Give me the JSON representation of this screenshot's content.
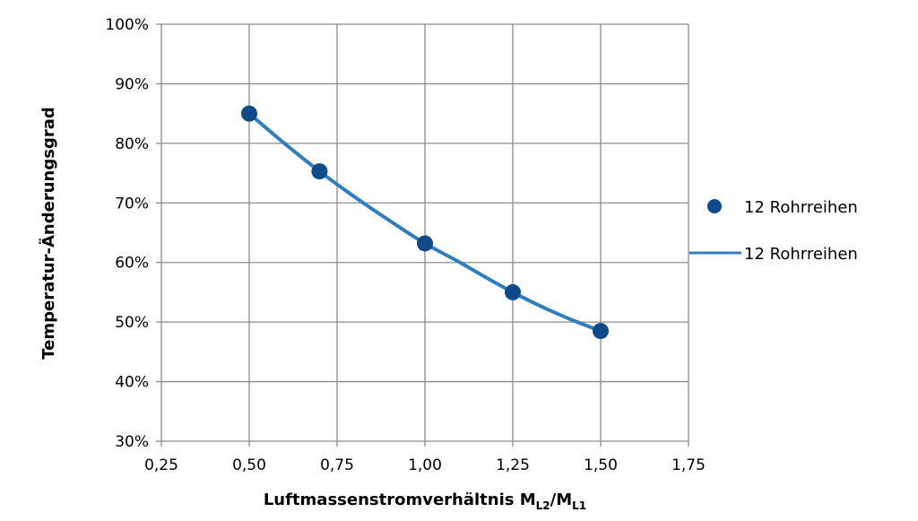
{
  "chart_data": {
    "type": "scatter",
    "xlabel": {
      "main": "Luftmassenstromverhältnis M",
      "sub1": "L2",
      "sep": "/M",
      "sub2": "L1"
    },
    "ylabel": "Temperatur-Änderungsgrad",
    "xlim": [
      0.25,
      1.75
    ],
    "ylim": [
      0.3,
      1.0
    ],
    "x_ticks": [
      0.25,
      0.5,
      0.75,
      1.0,
      1.25,
      1.5,
      1.75
    ],
    "x_tick_labels": [
      "0,25",
      "0,50",
      "0,75",
      "1,00",
      "1,25",
      "1,50",
      "1,75"
    ],
    "y_ticks": [
      0.3,
      0.4,
      0.5,
      0.6,
      0.7,
      0.8,
      0.9,
      1.0
    ],
    "y_tick_labels": [
      "30%",
      "40%",
      "50%",
      "60%",
      "70%",
      "80%",
      "90%",
      "100%"
    ],
    "grid": true,
    "legend_position": "right",
    "series": [
      {
        "name": "12 Rohrreihen",
        "kind": "markers",
        "color": "#0f4a8a",
        "x": [
          0.5,
          0.7,
          1.0,
          1.25,
          1.5
        ],
        "y": [
          0.85,
          0.753,
          0.632,
          0.55,
          0.485
        ]
      },
      {
        "name": "12 Rohrreihen",
        "kind": "line",
        "color": "#2f7fc0",
        "x": [
          0.5,
          0.6,
          0.7,
          0.8,
          0.9,
          1.0,
          1.1,
          1.2,
          1.3,
          1.4,
          1.5
        ],
        "y": [
          0.85,
          0.8,
          0.753,
          0.71,
          0.67,
          0.632,
          0.6,
          0.566,
          0.535,
          0.508,
          0.485
        ]
      }
    ]
  }
}
